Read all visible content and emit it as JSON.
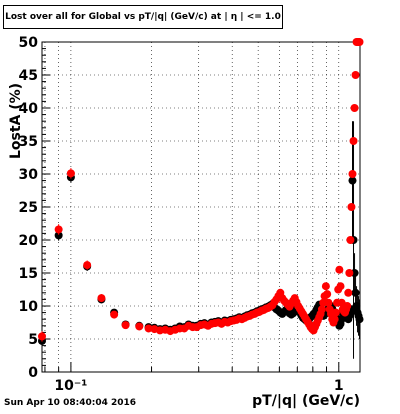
{
  "chart_data": {
    "type": "scatter",
    "title": "Lost over all for Global vs pT/|q| (GeV/c) at | η | <= 1.0",
    "xlabel": "pT/|q| (GeV/c)",
    "ylabel": "LostA (%)",
    "xscale": "log",
    "xlim": [
      0.078,
      1.2
    ],
    "ylim": [
      0,
      50
    ],
    "grid": true,
    "x_tick_labels": [
      "10⁻¹",
      "1"
    ],
    "y_ticks": [
      0,
      5,
      10,
      15,
      20,
      25,
      30,
      35,
      40,
      45,
      50
    ],
    "series": [
      {
        "color": "#000000",
        "x": [
          0.078,
          0.09,
          0.1,
          0.115,
          0.13,
          0.145,
          0.16,
          0.18,
          0.195,
          0.205,
          0.215,
          0.225,
          0.235,
          0.245,
          0.255,
          0.265,
          0.275,
          0.285,
          0.295,
          0.305,
          0.315,
          0.325,
          0.335,
          0.345,
          0.355,
          0.365,
          0.375,
          0.385,
          0.395,
          0.405,
          0.415,
          0.425,
          0.435,
          0.445,
          0.455,
          0.465,
          0.475,
          0.485,
          0.495,
          0.505,
          0.515,
          0.525,
          0.535,
          0.545,
          0.555,
          0.565,
          0.575,
          0.585,
          0.595,
          0.605,
          0.615,
          0.625,
          0.635,
          0.645,
          0.655,
          0.665,
          0.675,
          0.685,
          0.695,
          0.705,
          0.715,
          0.725,
          0.735,
          0.745,
          0.755,
          0.765,
          0.775,
          0.785,
          0.795,
          0.805,
          0.815,
          0.825,
          0.835,
          0.845,
          0.855,
          0.865,
          0.875,
          0.885,
          0.895,
          0.905,
          0.915,
          0.925,
          0.935,
          0.945,
          0.955,
          0.965,
          0.975,
          0.985,
          0.995,
          1.005,
          1.015,
          1.025,
          1.035,
          1.045,
          1.055,
          1.065,
          1.075,
          1.085,
          1.095,
          1.105,
          1.115,
          1.125,
          1.135,
          1.145,
          1.155,
          1.165,
          1.175,
          1.185,
          1.195
        ],
        "y": [
          4.7,
          20.7,
          29.5,
          16.0,
          11.0,
          9.0,
          7.2,
          7.0,
          6.8,
          6.7,
          6.5,
          6.6,
          6.4,
          6.6,
          6.9,
          6.8,
          7.2,
          7.0,
          7.0,
          7.3,
          7.4,
          7.2,
          7.5,
          7.6,
          7.7,
          7.5,
          7.8,
          7.7,
          7.9,
          8.0,
          8.1,
          8.3,
          8.2,
          8.4,
          8.6,
          8.7,
          8.9,
          9.0,
          9.2,
          9.3,
          9.5,
          9.6,
          9.8,
          9.9,
          10.1,
          10.3,
          9.8,
          9.5,
          9.3,
          9.0,
          8.8,
          9.1,
          9.4,
          9.2,
          8.9,
          8.7,
          8.9,
          9.2,
          9.5,
          9.3,
          9.0,
          8.6,
          8.2,
          8.0,
          7.8,
          7.6,
          8.0,
          8.3,
          8.5,
          8.8,
          9.0,
          9.4,
          9.8,
          10.2,
          9.5,
          9.0,
          8.5,
          8.7,
          9.0,
          9.3,
          9.6,
          9.9,
          10.0,
          9.6,
          9.2,
          8.8,
          8.5,
          8.0,
          7.5,
          7.0,
          7.3,
          8.0,
          9.0,
          9.5,
          9.0,
          8.5,
          8.2,
          8.0,
          8.5,
          9.0,
          9.5,
          29.0,
          20.0,
          15.0,
          12.0,
          10.0,
          9.0,
          8.5,
          8.0
        ],
        "yerr": [
          0.8,
          0.8,
          0.8,
          0.7,
          0.6,
          0.5,
          0.5,
          0.5,
          0.5,
          0.5,
          0.5,
          0.5,
          0.5,
          0.5,
          0.5,
          0.5,
          0.5,
          0.5,
          0.5,
          0.5,
          0.5,
          0.5,
          0.5,
          0.5,
          0.5,
          0.5,
          0.5,
          0.5,
          0.5,
          0.5,
          0.5,
          0.5,
          0.5,
          0.5,
          0.5,
          0.5,
          0.5,
          0.5,
          0.5,
          0.5,
          0.5,
          0.5,
          0.5,
          0.5,
          0.5,
          0.5,
          0.5,
          0.5,
          0.5,
          0.5,
          0.5,
          0.5,
          0.5,
          0.5,
          0.5,
          0.5,
          0.5,
          0.5,
          0.5,
          0.5,
          0.5,
          0.5,
          0.5,
          0.5,
          0.5,
          0.5,
          0.5,
          0.5,
          0.5,
          0.5,
          0.5,
          0.5,
          0.5,
          0.5,
          0.5,
          0.5,
          0.5,
          0.5,
          0.5,
          0.5,
          0.5,
          0.5,
          0.5,
          0.5,
          0.5,
          0.5,
          0.5,
          0.5,
          0.5,
          0.5,
          0.5,
          0.5,
          0.5,
          0.5,
          0.5,
          0.5,
          0.5,
          0.5,
          0.5,
          0.5,
          0.5,
          9.0,
          18.0,
          3.0,
          3.0,
          3.0,
          3.0,
          3.0,
          3.0
        ]
      },
      {
        "color": "#ff0000",
        "x": [
          0.078,
          0.09,
          0.1,
          0.115,
          0.13,
          0.145,
          0.16,
          0.18,
          0.195,
          0.205,
          0.215,
          0.225,
          0.235,
          0.245,
          0.255,
          0.265,
          0.275,
          0.285,
          0.295,
          0.305,
          0.315,
          0.325,
          0.335,
          0.345,
          0.355,
          0.365,
          0.375,
          0.385,
          0.395,
          0.405,
          0.415,
          0.425,
          0.435,
          0.445,
          0.455,
          0.465,
          0.475,
          0.485,
          0.495,
          0.505,
          0.515,
          0.525,
          0.535,
          0.545,
          0.555,
          0.565,
          0.575,
          0.585,
          0.595,
          0.605,
          0.615,
          0.625,
          0.635,
          0.645,
          0.655,
          0.665,
          0.675,
          0.685,
          0.695,
          0.705,
          0.715,
          0.725,
          0.735,
          0.745,
          0.755,
          0.765,
          0.775,
          0.785,
          0.795,
          0.805,
          0.815,
          0.825,
          0.835,
          0.845,
          0.855,
          0.865,
          0.875,
          0.885,
          0.895,
          0.905,
          0.915,
          0.925,
          0.935,
          0.945,
          0.955,
          0.965,
          0.975,
          0.985,
          0.995,
          1.005,
          1.015,
          1.025,
          1.035,
          1.045,
          1.055,
          1.065,
          1.075,
          1.085,
          1.095,
          1.105,
          1.115,
          1.125,
          1.135,
          1.145,
          1.155,
          1.165,
          1.175,
          1.185,
          1.195
        ],
        "y": [
          5.4,
          21.6,
          30.1,
          16.2,
          11.2,
          8.7,
          7.1,
          6.9,
          6.6,
          6.5,
          6.3,
          6.4,
          6.2,
          6.4,
          6.6,
          6.6,
          7.0,
          6.8,
          6.8,
          7.1,
          7.2,
          7.0,
          7.3,
          7.4,
          7.5,
          7.3,
          7.6,
          7.5,
          7.7,
          7.8,
          7.9,
          8.1,
          8.0,
          8.2,
          8.4,
          8.5,
          8.7,
          8.8,
          9.0,
          9.1,
          9.3,
          9.4,
          9.6,
          9.7,
          9.9,
          10.1,
          10.6,
          11.0,
          11.5,
          12.0,
          11.2,
          10.8,
          10.5,
          10.2,
          9.9,
          10.4,
          10.8,
          11.2,
          10.6,
          10.0,
          9.6,
          9.2,
          8.8,
          8.4,
          8.0,
          7.6,
          7.2,
          6.8,
          6.5,
          6.3,
          6.8,
          7.3,
          7.8,
          8.3,
          8.8,
          9.5,
          10.5,
          11.5,
          13.0,
          11.8,
          10.5,
          9.5,
          8.8,
          8.0,
          7.5,
          8.0,
          9.0,
          10.5,
          12.5,
          15.5,
          13.0,
          10.5,
          9.5,
          9.2,
          9.0,
          9.5,
          10.0,
          12.0,
          15.0,
          20.0,
          25.0,
          30.0,
          35.0,
          40.0,
          45.0,
          50.0,
          50.0,
          50.0,
          50.0
        ],
        "yerr": [
          0.8,
          0.8,
          0.8,
          0.7,
          0.6,
          0.5,
          0.5,
          0.5,
          0.5,
          0.5,
          0.5,
          0.5,
          0.5,
          0.5,
          0.5,
          0.5,
          0.5,
          0.5,
          0.5,
          0.5,
          0.5,
          0.5,
          0.5,
          0.5,
          0.5,
          0.5,
          0.5,
          0.5,
          0.5,
          0.5,
          0.5,
          0.5,
          0.5,
          0.5,
          0.5,
          0.5,
          0.5,
          0.5,
          0.5,
          0.5,
          0.5,
          0.5,
          0.5,
          0.5,
          0.5,
          0.5,
          0.5,
          0.5,
          0.5,
          0.5,
          0.5,
          0.5,
          0.5,
          0.5,
          0.5,
          0.5,
          0.5,
          0.5,
          0.5,
          0.5,
          0.5,
          0.5,
          0.5,
          0.5,
          0.5,
          0.5,
          0.5,
          0.5,
          0.5,
          0.5,
          0.5,
          0.5,
          0.5,
          0.5,
          0.5,
          0.5,
          0.5,
          0.5,
          0.5,
          0.5,
          0.5,
          0.5,
          0.5,
          0.5,
          0.5,
          0.5,
          0.5,
          0.5,
          0.5,
          0.5,
          0.5,
          0.5,
          0.5,
          0.5,
          0.5,
          0.5,
          0.5,
          0.5,
          0.5,
          0.5,
          0.5,
          0.5,
          0.5,
          0.5,
          0.5,
          0.5,
          0.5,
          0.5,
          0.5
        ]
      }
    ]
  },
  "footer": {
    "timestamp": "Sun Apr 10 08:40:04 2016"
  }
}
